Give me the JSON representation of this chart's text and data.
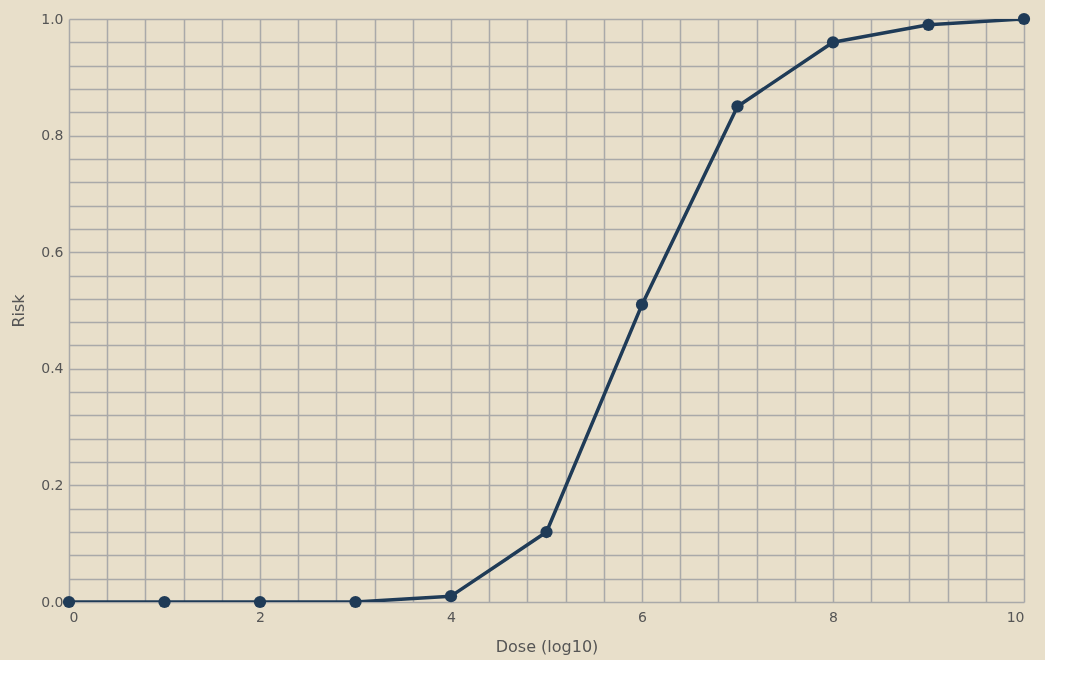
{
  "chart_data": {
    "type": "line",
    "xlabel": "Dose (log10)",
    "ylabel": "Risk",
    "x": [
      0,
      1,
      2,
      3,
      4,
      5,
      6,
      7,
      8,
      9,
      10
    ],
    "series": [
      {
        "color": "#1f3b57",
        "values": [
          0,
          0,
          0,
          0,
          0.01,
          0.12,
          0.51,
          0.85,
          0.96,
          0.99,
          1.0
        ]
      }
    ],
    "xlim": [
      0,
      10
    ],
    "xticks": [
      0,
      {
        "value": 0.4,
        "label": null
      },
      {
        "value": 0.8,
        "label": null
      },
      {
        "value": 1.2,
        "label": null
      },
      {
        "value": 1.6,
        "label": null
      },
      2,
      {
        "value": 2.4,
        "label": null
      },
      {
        "value": 2.8,
        "label": null
      },
      {
        "value": 3.2,
        "label": null
      },
      {
        "value": 3.6,
        "label": null
      },
      4,
      {
        "value": 4.4,
        "label": null
      },
      {
        "value": 4.8,
        "label": null
      },
      {
        "value": 5.2,
        "label": null
      },
      {
        "value": 5.6,
        "label": null
      },
      6,
      {
        "value": 6.4,
        "label": null
      },
      {
        "value": 6.8,
        "label": null
      },
      {
        "value": 7.2,
        "label": null
      },
      {
        "value": 7.6,
        "label": null
      },
      8,
      {
        "value": 8.4,
        "label": null
      },
      {
        "value": 8.8,
        "label": null
      },
      {
        "value": 9.2,
        "label": null
      },
      {
        "value": 9.6,
        "label": null
      },
      10
    ],
    "ylim": [
      0,
      1
    ],
    "yticks": [
      {
        "value": 0,
        "label": "0.0"
      },
      {
        "value": 0.04,
        "label": null
      },
      {
        "value": 0.08,
        "label": null
      },
      {
        "value": 0.12,
        "label": null
      },
      {
        "value": 0.16,
        "label": null
      },
      0.2,
      {
        "value": 0.24,
        "label": null
      },
      {
        "value": 0.28,
        "label": null
      },
      {
        "value": 0.32,
        "label": null
      },
      {
        "value": 0.36,
        "label": null
      },
      0.4,
      {
        "value": 0.44,
        "label": null
      },
      {
        "value": 0.48,
        "label": null
      },
      {
        "value": 0.52,
        "label": null
      },
      {
        "value": 0.56,
        "label": null
      },
      0.6,
      {
        "value": 0.64,
        "label": null
      },
      {
        "value": 0.68,
        "label": null
      },
      {
        "value": 0.72,
        "label": null
      },
      {
        "value": 0.76,
        "label": null
      },
      0.8,
      {
        "value": 0.84,
        "label": null
      },
      {
        "value": 0.88,
        "label": null
      },
      {
        "value": 0.92,
        "label": null
      },
      {
        "value": 0.96,
        "label": null
      },
      {
        "value": 1,
        "label": "1.0"
      }
    ],
    "grid": true,
    "marker": "circle",
    "line_style": "solid"
  }
}
